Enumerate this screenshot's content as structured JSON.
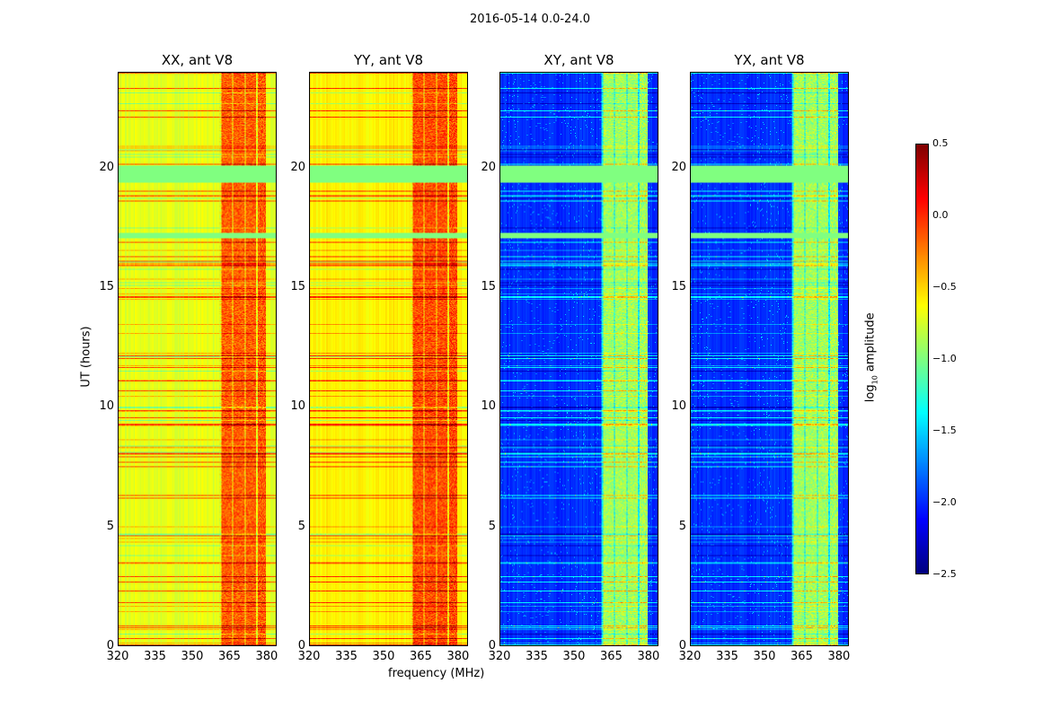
{
  "chart_data": {
    "type": "heatmap",
    "title": "2016-05-14 0.0-24.0",
    "xlabel": "frequency (MHz)",
    "ylabel": "UT (hours)",
    "xlim": [
      320,
      384
    ],
    "ylim": [
      0,
      24
    ],
    "xticks": [
      "320",
      "335",
      "350",
      "365",
      "380"
    ],
    "yticks": [
      "0",
      "5",
      "10",
      "15",
      "20"
    ],
    "colormap": "jet",
    "colorbar": {
      "label": "log10 amplitude",
      "label_base": "log",
      "label_sub": "10",
      "label_rest": " amplitude",
      "range": [
        -2.5,
        0.5
      ],
      "ticks": [
        "0.5",
        "0.0",
        "−0.5",
        "−1.0",
        "−1.5",
        "−2.0",
        "−2.5"
      ],
      "placement": "right"
    },
    "rfi_band_mhz": [
      361,
      380
    ],
    "flagged_hours": [
      [
        19.4,
        20.1
      ],
      [
        17.1,
        17.3
      ]
    ],
    "panels": [
      {
        "title": "XX, ant V8",
        "base_level": -0.7,
        "band_level": -0.15
      },
      {
        "title": "YY, ant V8",
        "base_level": -0.6,
        "band_level": -0.1
      },
      {
        "title": "XY, ant V8",
        "base_level": -2.0,
        "band_level": -0.9
      },
      {
        "title": "YX, ant V8",
        "base_level": -2.0,
        "band_level": -0.9
      }
    ]
  }
}
